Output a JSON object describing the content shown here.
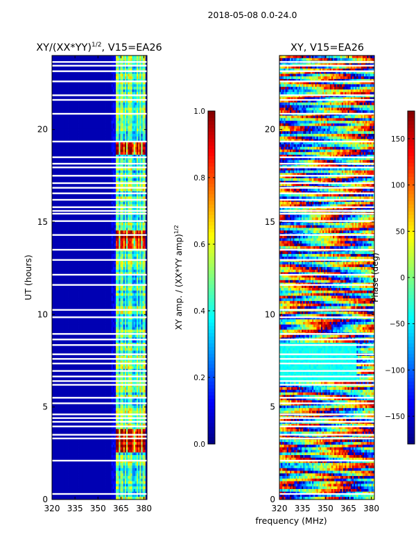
{
  "figure": {
    "suptitle": "2018-05-08 0.0-24.0",
    "xlabel": "frequency (MHz)"
  },
  "chart_data": [
    {
      "type": "heatmap",
      "title": "XY/(XX*YY)",
      "title_sup": "1/2",
      "title_suffix": ", V15=EA26",
      "xlabel": "",
      "ylabel": "UT (hours)",
      "xlim": [
        320,
        382
      ],
      "ylim": [
        0,
        24
      ],
      "xticks": [
        320,
        335,
        350,
        365,
        380
      ],
      "yticks": [
        0,
        5,
        10,
        15,
        20
      ],
      "x_label_strings": [
        "320",
        "335",
        "350",
        "365",
        "380"
      ],
      "y_label_strings": [
        "0",
        "5",
        "10",
        "15",
        "20"
      ],
      "colorbar": {
        "label": "XY amp. / (XX*YY amp)",
        "label_sup": "1/2",
        "range": [
          0.0,
          1.0
        ],
        "ticks": [
          0.0,
          0.2,
          0.4,
          0.6,
          0.8,
          1.0
        ],
        "tick_strings": [
          "0.0",
          "0.2",
          "0.4",
          "0.6",
          "0.8",
          "1.0"
        ],
        "colormap": "jet"
      },
      "features": {
        "background_value": 0.05,
        "bright_channel_band_MHz": [
          362,
          381
        ],
        "strongest_hours": [
          [
            2.5,
            3.8
          ],
          [
            13.6,
            14.6
          ],
          [
            18.7,
            19.4
          ]
        ]
      }
    },
    {
      "type": "heatmap",
      "title": "XY, V15=EA26",
      "xlabel": "",
      "ylabel": "",
      "xlim": [
        320,
        382
      ],
      "ylim": [
        0,
        24
      ],
      "xticks": [
        320,
        335,
        350,
        365,
        380
      ],
      "yticks": [
        0,
        5,
        10,
        15,
        20
      ],
      "x_label_strings": [
        "320",
        "335",
        "350",
        "365",
        "380"
      ],
      "y_label_strings": [
        "0",
        "5",
        "10",
        "15",
        "20"
      ],
      "colorbar": {
        "label": "Phase (deg)",
        "range": [
          -180,
          180
        ],
        "ticks": [
          -150,
          -100,
          -50,
          0,
          50,
          100,
          150
        ],
        "tick_strings": [
          "−150",
          "−100",
          "−50",
          "0",
          "50",
          "100",
          "150"
        ],
        "colormap": "jet"
      },
      "features": {
        "uniform_phase_block_hours": [
          6.3,
          8.4
        ],
        "uniform_phase_value_deg": -40,
        "noisy_phase": true
      }
    }
  ],
  "flagged_rows_UT_hours": [
    0.3,
    2.1,
    3.3,
    3.5,
    3.95,
    4.2,
    4.4,
    4.6,
    5.2,
    5.5,
    6.2,
    6.4,
    6.65,
    6.95,
    7.35,
    7.6,
    7.85,
    8.35,
    8.65,
    8.95,
    9.85,
    10.25,
    11.6,
    12.15,
    12.95,
    13.5,
    14.3,
    15.05,
    15.45,
    15.6,
    15.8,
    16.2,
    16.55,
    16.85,
    17.1,
    17.5,
    17.95,
    18.15,
    18.5,
    19.35,
    20.85,
    21.6,
    21.85,
    22.6,
    23.15,
    23.45,
    23.65
  ],
  "colors": {
    "axis": "#000000",
    "flag": "#ffffff"
  }
}
